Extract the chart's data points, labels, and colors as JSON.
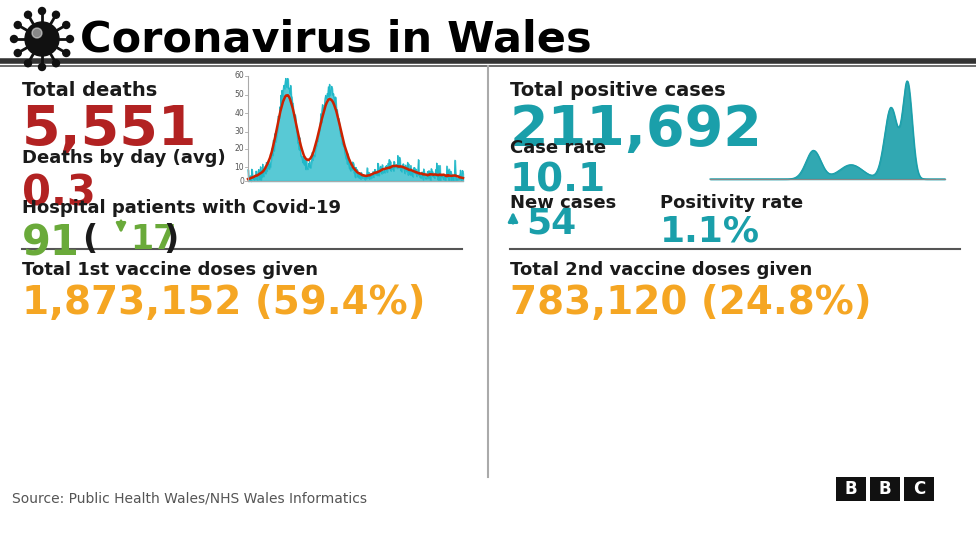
{
  "title": "Coronavirus in Wales",
  "bg_color": "#ffffff",
  "title_color": "#000000",
  "left_panel": {
    "total_deaths_label": "Total deaths",
    "total_deaths_value": "5,551",
    "total_deaths_color": "#b22222",
    "deaths_by_day_label": "Deaths by day (avg)",
    "deaths_by_day_value": "0.3",
    "deaths_by_day_color": "#b22222",
    "hospital_label": "Hospital patients with Covid-19",
    "hospital_value": "91",
    "hospital_color": "#6aaa3a",
    "hospital_change": "17",
    "vaccine1_label": "Total 1st vaccine doses given",
    "vaccine1_value": "1,873,152 (59.4%)",
    "vaccine1_color": "#f5a623"
  },
  "right_panel": {
    "total_positive_label": "Total positive cases",
    "total_positive_value": "211,692",
    "total_positive_color": "#1a9faa",
    "case_rate_label": "Case rate",
    "case_rate_value": "10.1",
    "case_rate_color": "#1a9faa",
    "new_cases_label": "New cases",
    "new_cases_value": "54",
    "new_cases_color": "#1a9faa",
    "positivity_label": "Positivity rate",
    "positivity_value": "1.1%",
    "positivity_color": "#1a9faa",
    "vaccine2_label": "Total 2nd vaccine doses given",
    "vaccine2_value": "783,120 (24.8%)",
    "vaccine2_color": "#f5a623"
  },
  "source_text": "Source: Public Health Wales/NHS Wales Informatics",
  "label_color": "#1a1a1a",
  "green_color": "#6aaa3a"
}
